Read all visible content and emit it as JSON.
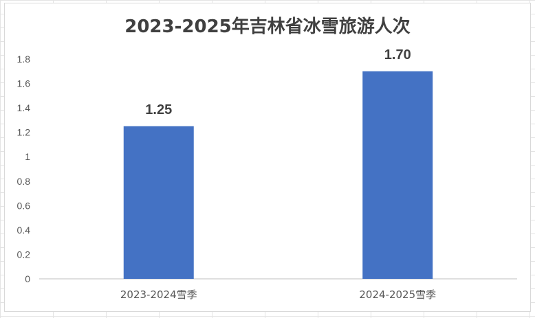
{
  "chart_data": {
    "type": "bar",
    "title": "2023-2025年吉林省冰雪旅游人次",
    "categories": [
      "2023-2024雪季",
      "2024-2025雪季"
    ],
    "values": [
      1.25,
      1.7
    ],
    "value_labels": [
      "1.25",
      "1.70"
    ],
    "ylim": [
      0,
      1.8
    ],
    "yticks": [
      "0",
      "0.2",
      "0.4",
      "0.6",
      "0.8",
      "1",
      "1.2",
      "1.4",
      "1.6",
      "1.8"
    ],
    "xlabel": "",
    "ylabel": "",
    "grid": false,
    "legend": "none",
    "bar_color": "#4472C4",
    "axis_color": "#bfbfbf",
    "text_color": "#595959"
  }
}
